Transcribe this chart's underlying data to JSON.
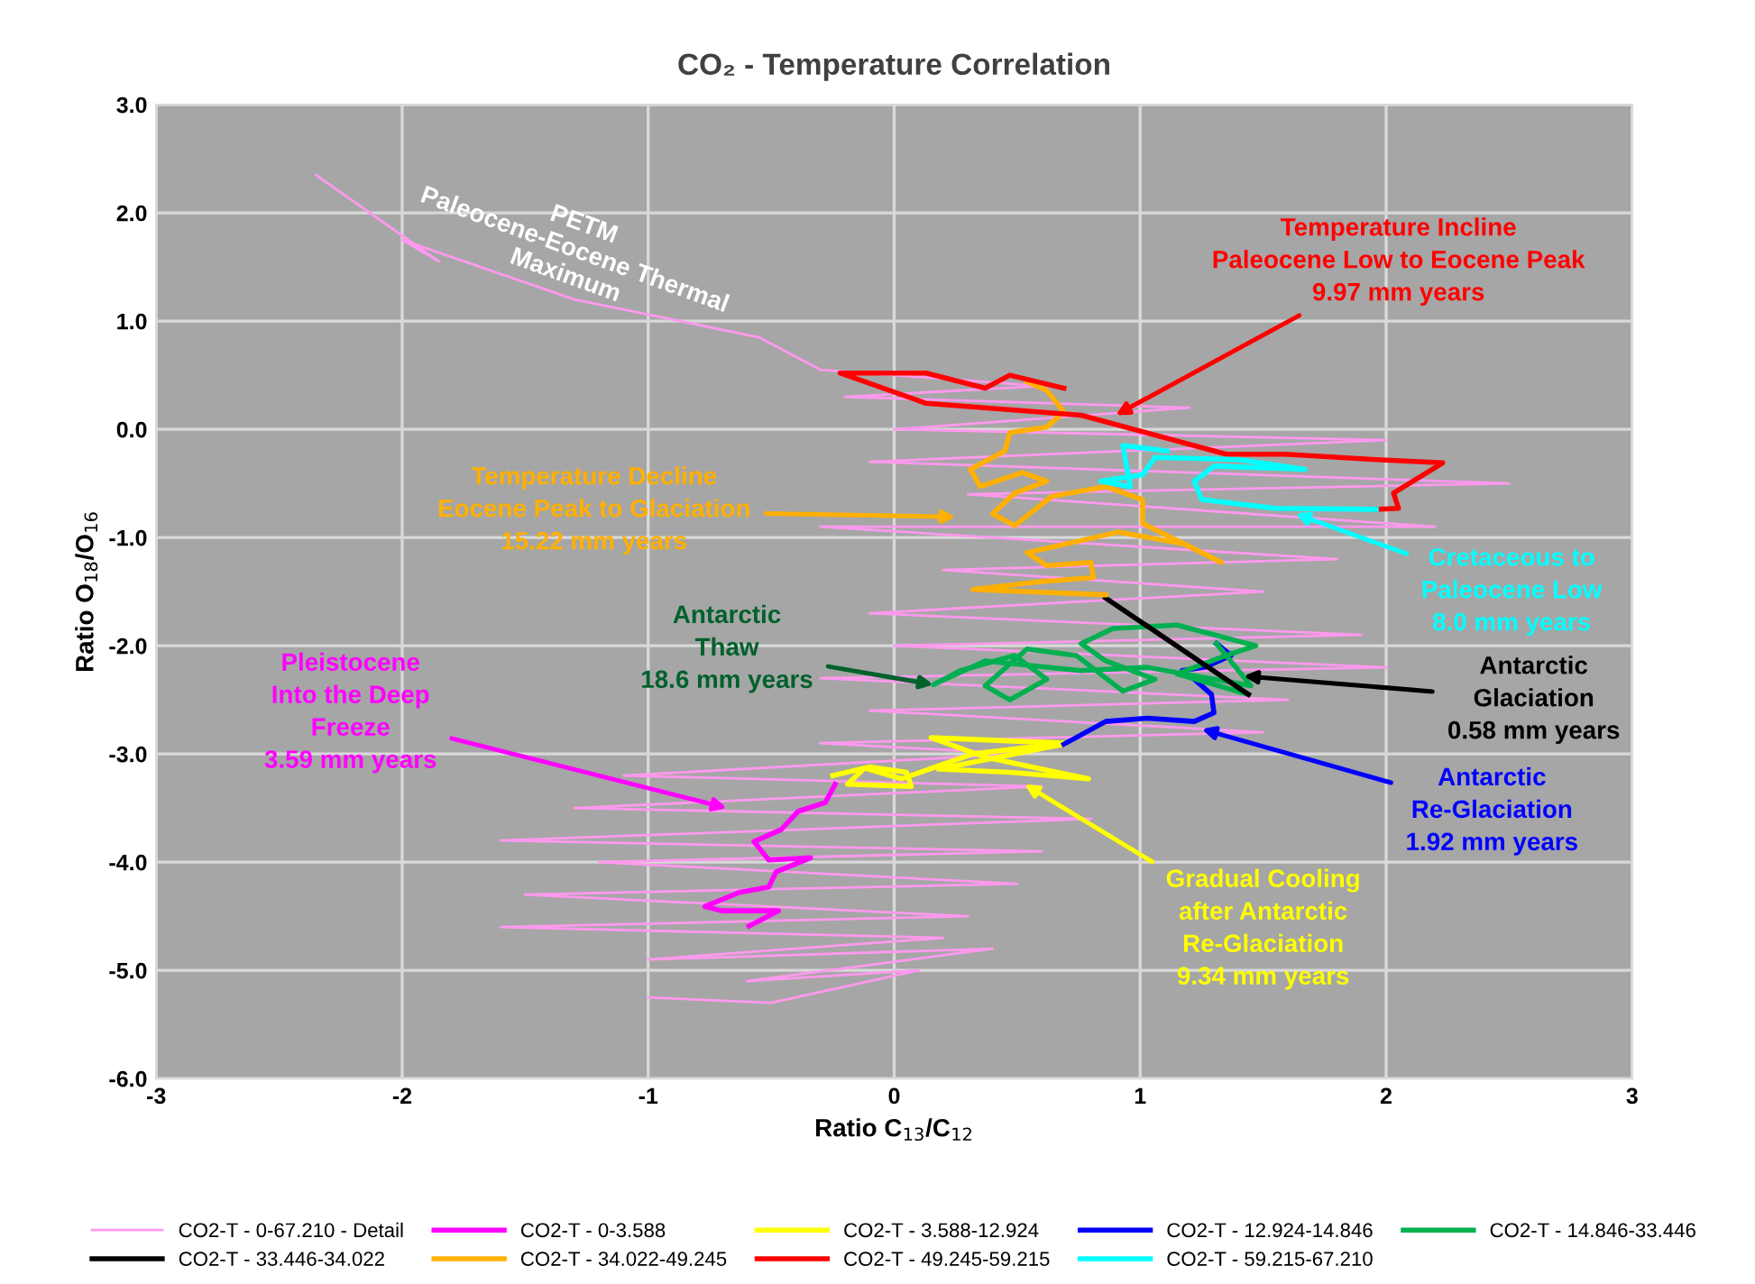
{
  "chart_data": {
    "type": "line",
    "title": "CO₂ - Temperature Correlation",
    "xlabel": "Ratio C$_{13}$/C$_{12}$",
    "ylabel": "Ratio O$_{18}$/O$_{16}$",
    "xlim": [
      -3,
      3
    ],
    "ylim": [
      -6,
      3
    ],
    "xticks": [
      -3,
      -2,
      -1,
      0,
      1,
      2,
      3
    ],
    "yticks": [
      {
        "value": -6,
        "label": "-6.0"
      },
      {
        "value": -5,
        "label": "-5.0"
      },
      {
        "value": -4,
        "label": "-4.0"
      },
      {
        "value": -3,
        "label": "-3.0"
      },
      {
        "value": -2,
        "label": "-2.0"
      },
      {
        "value": -1,
        "label": "-1.0"
      },
      {
        "value": 0,
        "label": "0.0"
      },
      {
        "value": 1,
        "label": "1.0"
      },
      {
        "value": 2,
        "label": "2.0"
      },
      {
        "value": 3,
        "label": "3.0"
      }
    ],
    "grid": true,
    "legend": "bottom",
    "marker": "none",
    "line_style": "solid",
    "series": [
      {
        "name": "CO2-T - 0-67.210 - Detail",
        "color": "#ff99ee",
        "x": [
          -2.35,
          -1.85,
          -2.0,
          -1.3,
          -0.55,
          -0.3,
          0.6,
          -0.2,
          1.2,
          0.0,
          2.0,
          -0.1,
          2.5,
          0.3,
          2.2,
          -0.3,
          1.8,
          0.2,
          1.5,
          -0.1,
          1.9,
          0.0,
          2.0,
          -0.3,
          1.6,
          -0.1,
          1.5,
          -0.3,
          0.5,
          -1.1,
          0.6,
          -1.3,
          0.8,
          -1.6,
          0.6,
          -1.2,
          0.5,
          -1.5,
          0.3,
          -1.6,
          0.2,
          -1.0,
          0.4,
          -0.6,
          0.1,
          -0.5,
          -1.0
        ],
        "values": [
          2.35,
          1.55,
          1.75,
          1.2,
          0.85,
          0.55,
          0.4,
          0.3,
          0.2,
          0.0,
          -0.1,
          -0.3,
          -0.5,
          -0.6,
          -0.9,
          -0.9,
          -1.2,
          -1.3,
          -1.5,
          -1.7,
          -1.9,
          -2.0,
          -2.2,
          -2.3,
          -2.5,
          -2.6,
          -2.8,
          -2.9,
          -3.0,
          -3.2,
          -3.3,
          -3.5,
          -3.6,
          -3.8,
          -3.9,
          -4.0,
          -4.2,
          -4.3,
          -4.5,
          -4.6,
          -4.7,
          -4.9,
          -4.8,
          -5.1,
          -5.0,
          -5.3,
          -5.25
        ]
      },
      {
        "name": "CO2-T - 0-3.588",
        "color": "#ff00ff",
        "x": [
          -0.59,
          -0.47,
          -0.7,
          -0.77,
          -0.63,
          -0.51,
          -0.48,
          -0.34,
          -0.51,
          -0.57,
          -0.46,
          -0.39,
          -0.28,
          -0.24
        ],
        "values": [
          -4.59,
          -4.45,
          -4.45,
          -4.41,
          -4.28,
          -4.23,
          -4.09,
          -3.96,
          -3.98,
          -3.81,
          -3.7,
          -3.53,
          -3.45,
          -3.28
        ]
      },
      {
        "name": "CO2-T - 3.588-12.924",
        "color": "#ffff00",
        "x": [
          -0.25,
          -0.1,
          0.05,
          0.07,
          -0.19,
          -0.12,
          0.03,
          0.32,
          0.69,
          0.15,
          0.37,
          0.79,
          0.47,
          0.18,
          0.69
        ],
        "values": [
          -3.2,
          -3.12,
          -3.17,
          -3.3,
          -3.28,
          -3.13,
          -3.23,
          -3.0,
          -2.9,
          -2.85,
          -3.03,
          -3.23,
          -3.17,
          -3.14,
          -2.91
        ]
      },
      {
        "name": "CO2-T - 12.924-14.846",
        "color": "#0000ff",
        "x": [
          0.69,
          0.86,
          1.03,
          1.22,
          1.3,
          1.29,
          1.22,
          1.17,
          1.26,
          1.37,
          1.31
        ],
        "values": [
          -2.91,
          -2.7,
          -2.67,
          -2.7,
          -2.62,
          -2.45,
          -2.31,
          -2.23,
          -2.2,
          -2.09,
          -1.98
        ]
      },
      {
        "name": "CO2-T - 14.846-33.446",
        "color": "#00b050",
        "x": [
          1.31,
          1.45,
          1.03,
          0.76,
          0.37,
          0.16,
          0.27,
          0.49,
          0.62,
          0.47,
          0.37,
          0.54,
          0.74,
          0.93,
          1.06,
          0.86,
          0.76,
          0.89,
          1.15,
          1.47,
          1.35,
          1.15,
          1.44
        ],
        "values": [
          -1.98,
          -2.37,
          -2.2,
          -2.23,
          -2.14,
          -2.36,
          -2.23,
          -2.09,
          -2.31,
          -2.5,
          -2.37,
          -2.03,
          -2.09,
          -2.42,
          -2.31,
          -2.14,
          -1.98,
          -1.84,
          -1.81,
          -2.0,
          -2.09,
          -2.26,
          -2.45
        ]
      },
      {
        "name": "CO2-T - 33.446-34.022",
        "color": "#000000",
        "x": [
          1.44,
          0.86
        ],
        "values": [
          -2.45,
          -1.56
        ]
      },
      {
        "name": "CO2-T - 34.022-49.245",
        "color": "#ffb000",
        "x": [
          0.86,
          0.32,
          0.59,
          0.81,
          0.8,
          0.62,
          0.54,
          0.64,
          0.91,
          1.18,
          1.33,
          1.01,
          1.01,
          0.86,
          0.64,
          0.49,
          0.4,
          0.49,
          0.62,
          0.52,
          0.35,
          0.31,
          0.45,
          0.47,
          0.62,
          0.69,
          0.62,
          0.54
        ],
        "values": [
          -1.53,
          -1.48,
          -1.41,
          -1.37,
          -1.23,
          -1.26,
          -1.14,
          -1.09,
          -0.95,
          -1.06,
          -1.23,
          -0.87,
          -0.65,
          -0.53,
          -0.62,
          -0.89,
          -0.78,
          -0.59,
          -0.48,
          -0.4,
          -0.53,
          -0.37,
          -0.2,
          -0.03,
          0.02,
          0.16,
          0.36,
          0.44
        ]
      },
      {
        "name": "CO2-T - 49.245-59.215",
        "color": "#ff0000",
        "x": [
          0.69,
          0.47,
          0.37,
          0.13,
          -0.22,
          0.13,
          0.76,
          1.35,
          1.59,
          1.96,
          2.23,
          2.03,
          2.05,
          1.96
        ],
        "values": [
          0.38,
          0.5,
          0.38,
          0.52,
          0.52,
          0.24,
          0.13,
          -0.23,
          -0.23,
          -0.28,
          -0.31,
          -0.59,
          -0.73,
          -0.74
        ]
      },
      {
        "name": "CO2-T - 59.215-67.210",
        "color": "#00ffff",
        "x": [
          1.96,
          1.55,
          1.25,
          1.22,
          1.3,
          1.67,
          1.4,
          1.06,
          1.01,
          0.84,
          0.96,
          0.93,
          1.11
        ],
        "values": [
          -0.74,
          -0.73,
          -0.65,
          -0.48,
          -0.34,
          -0.37,
          -0.28,
          -0.26,
          -0.42,
          -0.48,
          -0.53,
          -0.15,
          -0.2
        ]
      }
    ],
    "annotations": [
      {
        "text": "Temperature Incline\nPaleocene Low to Eocene Peak\n9.97 mm years",
        "x": 0.9,
        "y": 0.13
      },
      {
        "text": "Temperature Decline\nEocene Peak to Glaciation\n15.22 mm years",
        "x": 0.25,
        "y": -0.81
      },
      {
        "text": "Cretaceous to\nPaleocene Low\n8.0 mm years",
        "x": 1.63,
        "y": -0.78
      },
      {
        "text": "Antarctic\nThaw\n18.6 mm years",
        "x": 0.16,
        "y": -2.36
      },
      {
        "text": "Pleistocene\nInto the Deep\nFreeze\n3.59 mm years",
        "x": -0.68,
        "y": -3.5
      },
      {
        "text": "Antarctic\nGlaciation\n0.58 mm years",
        "x": 1.42,
        "y": -2.28
      },
      {
        "text": "Antarctic\nRe-Glaciation\n1.92 mm years",
        "x": 1.25,
        "y": -2.77
      },
      {
        "text": "Gradual Cooling\nafter Antarctic\nRe-Glaciation\n9.34 mm years",
        "x": 0.53,
        "y": -3.28
      },
      "PETM\nPaleocene-Eocene Thermal\nMaximum"
    ]
  }
}
